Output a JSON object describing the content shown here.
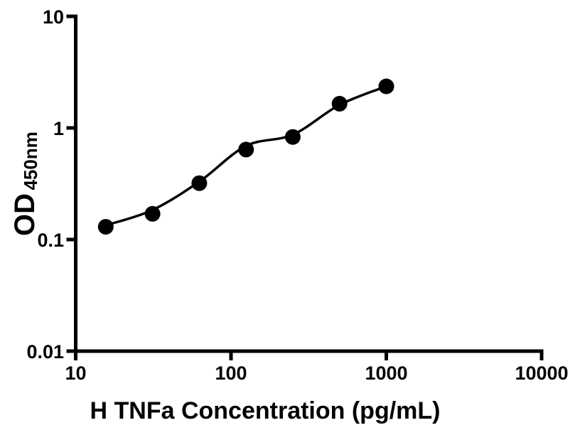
{
  "figure": {
    "background": "#ffffff",
    "description": "ELISA standard curve plot, black on white, log-log axes"
  },
  "chart_data": {
    "type": "scatter",
    "title": "",
    "xlabel": "H TNFa Concentration (pg/mL)",
    "ylabel_main": "OD",
    "ylabel_sub": "450nm",
    "x_scale": "log",
    "y_scale": "log",
    "xlim": [
      10,
      10000
    ],
    "ylim": [
      0.01,
      10
    ],
    "grid": false,
    "legend": "none",
    "x_ticks": [
      {
        "v": 10,
        "label": "10"
      },
      {
        "v": 100,
        "label": "100"
      },
      {
        "v": 1000,
        "label": "1000"
      },
      {
        "v": 10000,
        "label": "10000"
      }
    ],
    "y_ticks": [
      {
        "v": 0.01,
        "label": "0.01"
      },
      {
        "v": 0.1,
        "label": "0.1"
      },
      {
        "v": 1,
        "label": "1"
      },
      {
        "v": 10,
        "label": "10"
      }
    ],
    "points": {
      "x": [
        15.625,
        31.25,
        62.5,
        125,
        250,
        500,
        1000
      ],
      "od": [
        0.13,
        0.17,
        0.32,
        0.64,
        0.83,
        1.65,
        2.36
      ]
    },
    "fit_curve": {
      "x": [
        15.625,
        31.25,
        62.5,
        125,
        250,
        500,
        1000
      ],
      "od": [
        0.134,
        0.184,
        0.33,
        0.69,
        0.87,
        1.61,
        2.36
      ]
    },
    "style": {
      "marker_color": "#000000",
      "marker_radius": 11,
      "line_color": "#000000",
      "line_width": 3.5,
      "axis_color": "#000000",
      "axis_width": 5,
      "tick_length": 13,
      "background": "#ffffff"
    }
  }
}
